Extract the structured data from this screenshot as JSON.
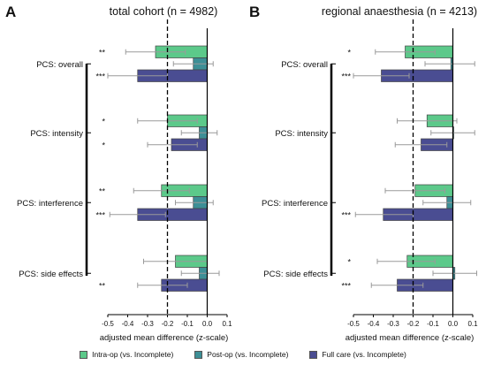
{
  "chart_data": [
    {
      "type": "bar",
      "orientation": "horizontal",
      "panel_letter": "A",
      "title": "total cohort (n = 4982)",
      "xlabel": "adjusted mean difference (z-scale)",
      "xlim": [
        -0.5,
        0.1
      ],
      "xticks": [
        "-0.5",
        "-0.4",
        "-0.3",
        "-0.2",
        "-0.1",
        "0.0",
        "0.1"
      ],
      "reference_line": -0.2,
      "categories": [
        "PCS: overall",
        "PCS: intensity",
        "PCS: interference",
        "PCS: side effects"
      ],
      "series": [
        {
          "name": "Intra-op (vs. Incomplete)",
          "values": [
            -0.26,
            -0.2,
            -0.23,
            -0.16
          ],
          "ci_low": [
            -0.41,
            -0.35,
            -0.37,
            -0.32
          ],
          "ci_high": [
            -0.11,
            -0.05,
            -0.09,
            0.0
          ],
          "significance": [
            "**",
            "*",
            "**",
            ""
          ]
        },
        {
          "name": "Post-op (vs. Incomplete)",
          "values": [
            -0.07,
            -0.04,
            -0.07,
            -0.04
          ],
          "ci_low": [
            -0.17,
            -0.13,
            -0.16,
            -0.13
          ],
          "ci_high": [
            0.03,
            0.05,
            0.03,
            0.06
          ],
          "significance": [
            "",
            "",
            "",
            ""
          ]
        },
        {
          "name": "Full care (vs. Incomplete)",
          "values": [
            -0.35,
            -0.18,
            -0.35,
            -0.23
          ],
          "ci_low": [
            -0.5,
            -0.3,
            -0.49,
            -0.35
          ],
          "ci_high": [
            -0.2,
            -0.05,
            -0.21,
            -0.1
          ],
          "significance": [
            "***",
            "*",
            "***",
            "**"
          ]
        }
      ]
    },
    {
      "type": "bar",
      "orientation": "horizontal",
      "panel_letter": "B",
      "title": "regional anaesthesia (n = 4213)",
      "xlabel": "adjusted mean difference (z-scale)",
      "xlim": [
        -0.5,
        0.1
      ],
      "xticks": [
        "-0.5",
        "-0.4",
        "-0.3",
        "-0.2",
        "-0.1",
        "0.0",
        "0.1"
      ],
      "reference_line": -0.2,
      "categories": [
        "PCS: overall",
        "PCS: intensity",
        "PCS: interference",
        "PCS: side effects"
      ],
      "series": [
        {
          "name": "Intra-op (vs. Incomplete)",
          "values": [
            -0.24,
            -0.13,
            -0.19,
            -0.23
          ],
          "ci_low": [
            -0.39,
            -0.28,
            -0.34,
            -0.38
          ],
          "ci_high": [
            -0.09,
            0.02,
            -0.04,
            -0.09
          ],
          "significance": [
            "*",
            "",
            "",
            "*"
          ]
        },
        {
          "name": "Post-op (vs. Incomplete)",
          "values": [
            -0.01,
            0.0,
            -0.03,
            0.01
          ],
          "ci_low": [
            -0.14,
            -0.11,
            -0.15,
            -0.1
          ],
          "ci_high": [
            0.11,
            0.11,
            0.09,
            0.12
          ],
          "significance": [
            "",
            "",
            "",
            ""
          ]
        },
        {
          "name": "Full care (vs. Incomplete)",
          "values": [
            -0.36,
            -0.16,
            -0.35,
            -0.28
          ],
          "ci_low": [
            -0.5,
            -0.29,
            -0.49,
            -0.41
          ],
          "ci_high": [
            -0.22,
            -0.03,
            -0.2,
            -0.15
          ],
          "significance": [
            "***",
            "",
            "***",
            "***"
          ]
        }
      ]
    }
  ],
  "legend": [
    {
      "label": "Intra-op (vs. Incomplete)",
      "color": "#5cc98a"
    },
    {
      "label": "Post-op (vs. Incomplete)",
      "color": "#3d8f96"
    },
    {
      "label": "Full care (vs. Incomplete)",
      "color": "#4a4d92"
    }
  ]
}
